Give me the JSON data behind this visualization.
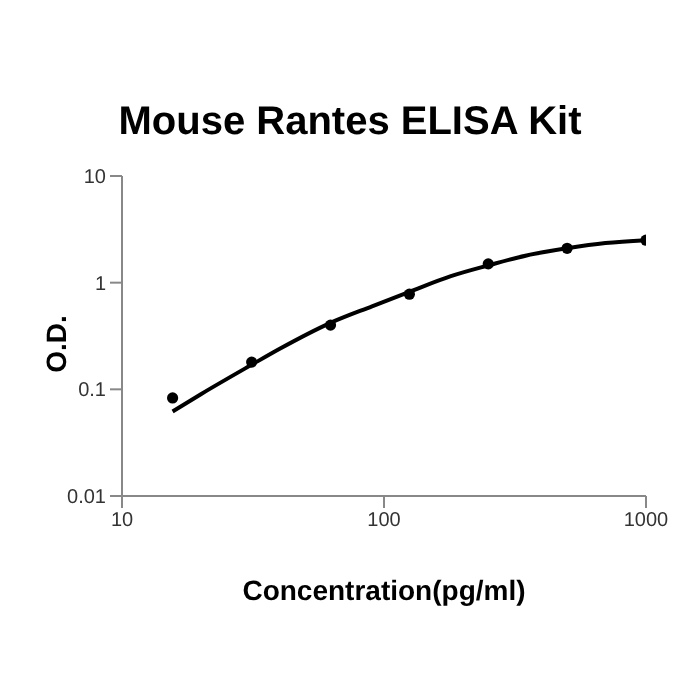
{
  "chart_data": {
    "type": "scatter",
    "title": "Mouse Rantes ELISA Kit",
    "xlabel": "Concentration(pg/ml)",
    "ylabel": "O.D.",
    "log": "xy",
    "xlim": [
      10,
      1000
    ],
    "ylim": [
      0.01,
      10
    ],
    "xticks": [
      10,
      100,
      1000
    ],
    "yticks": [
      0.01,
      0.1,
      1,
      10
    ],
    "grid": false,
    "series": [
      {
        "color": "#000000",
        "marker": "circle",
        "x": [
          15.6,
          31.25,
          62.5,
          125,
          250,
          500,
          1000
        ],
        "values": [
          0.083,
          0.18,
          0.4,
          0.78,
          1.5,
          2.1,
          2.5
        ]
      },
      {
        "type": "line",
        "color": "#000000",
        "marker": "none",
        "line_style": "solid",
        "x": [
          15.6,
          20,
          31.25,
          40,
          62.5,
          90,
          125,
          180,
          250,
          350,
          500,
          700,
          1000
        ],
        "values": [
          0.062,
          0.09,
          0.17,
          0.24,
          0.42,
          0.6,
          0.82,
          1.15,
          1.45,
          1.8,
          2.1,
          2.35,
          2.5
        ]
      }
    ]
  }
}
